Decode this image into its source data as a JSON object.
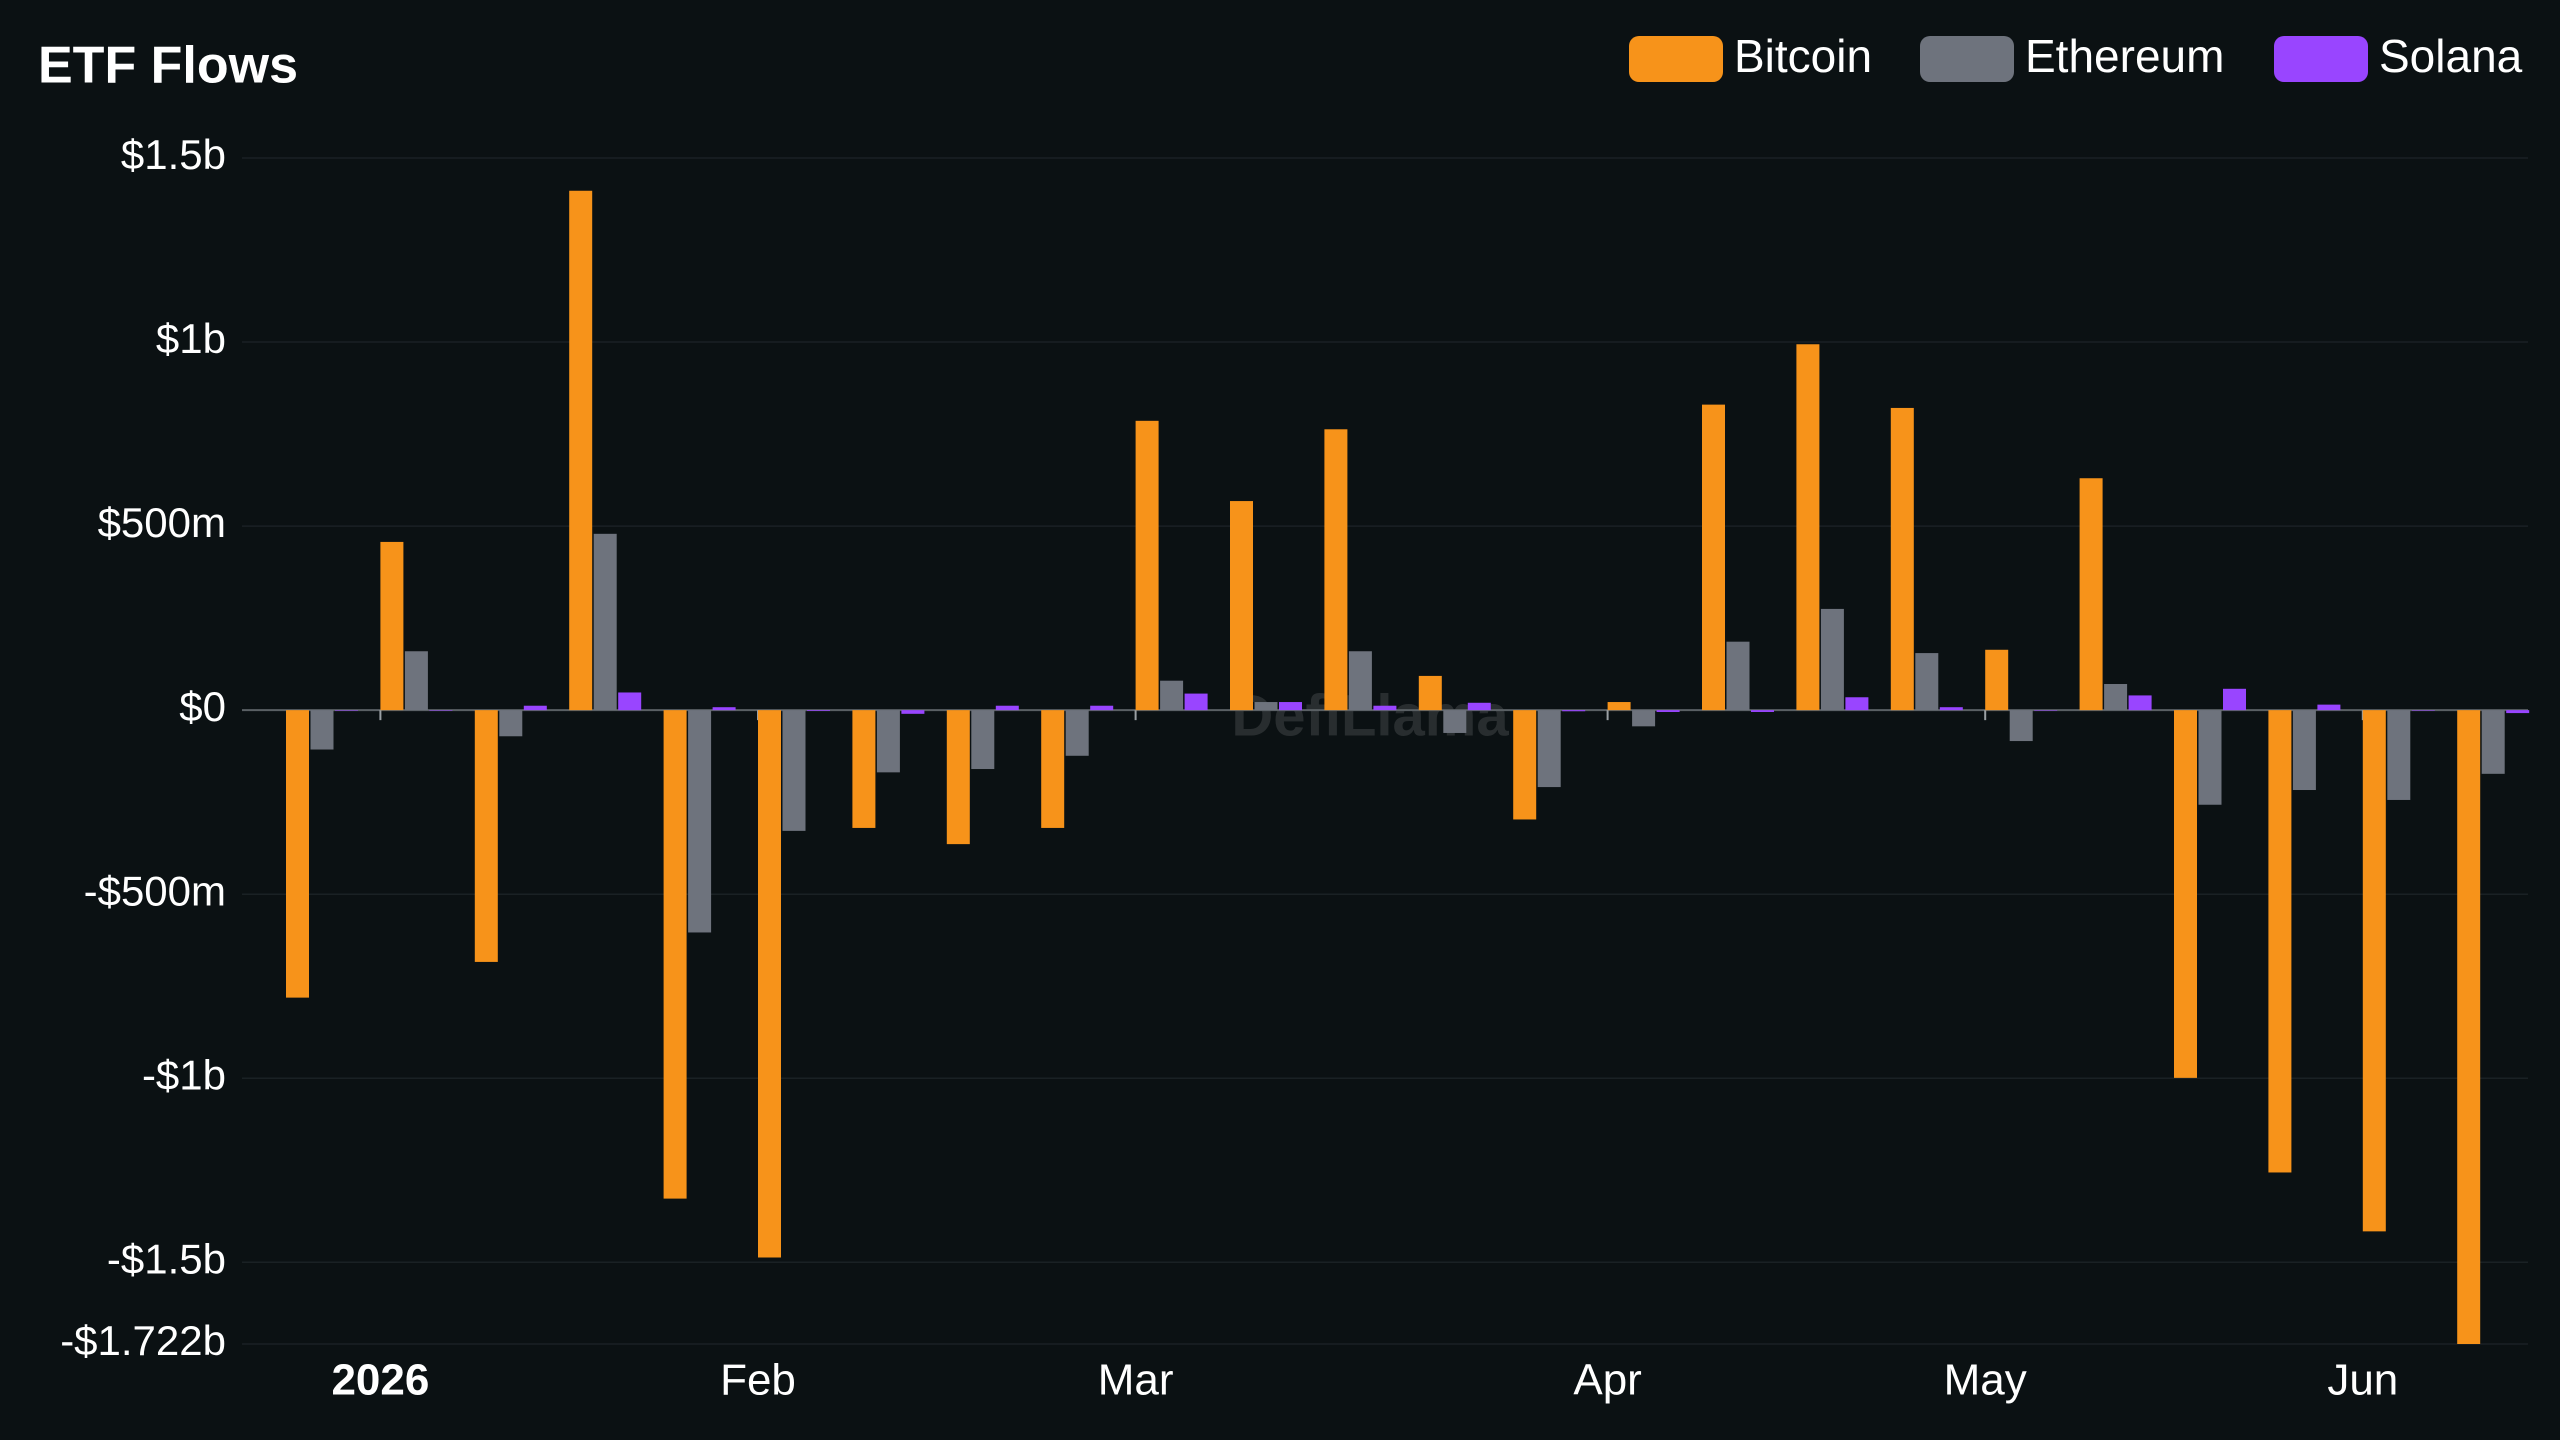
{
  "chart_data": {
    "type": "bar",
    "title": "ETF Flows",
    "watermark": "DefiLlama",
    "categories": [
      null,
      "2026",
      null,
      null,
      null,
      "Feb",
      null,
      null,
      null,
      "Mar",
      null,
      null,
      null,
      null,
      "Apr",
      null,
      null,
      null,
      "May",
      null,
      null,
      null,
      "Jun",
      null
    ],
    "series": [
      {
        "name": "Bitcoin",
        "color": "#f7931a",
        "values": [
          -781000000,
          457000000,
          -684000000,
          1411000000,
          -1327000000,
          -1487000000,
          -320000000,
          -364000000,
          -320000000,
          786000000,
          568000000,
          763000000,
          93000000,
          -297000000,
          22000000,
          830000000,
          994000000,
          821000000,
          164000000,
          630000000,
          -999000000,
          -1256000000,
          -1416000000,
          -1722000000
        ]
      },
      {
        "name": "Ethereum",
        "color": "#6e737d",
        "values": [
          -107000000,
          160000000,
          -71000000,
          479000000,
          -604000000,
          -328000000,
          -169000000,
          -160000000,
          -124000000,
          80000000,
          22000000,
          160000000,
          -62000000,
          -209000000,
          -44000000,
          186000000,
          275000000,
          155000000,
          -84000000,
          71000000,
          -257000000,
          -217000000,
          -244000000,
          -173000000
        ]
      },
      {
        "name": "Solana",
        "color": "#9945ff",
        "values": [
          0,
          0,
          12000000,
          48000000,
          8000000,
          -2000000,
          -10000000,
          12000000,
          12000000,
          45000000,
          22000000,
          12000000,
          20000000,
          -3000000,
          -5000000,
          -5000000,
          35000000,
          8000000,
          0,
          40000000,
          58000000,
          15000000,
          0,
          -8000000
        ]
      }
    ],
    "ylim": [
      -1722000000,
      1500000000
    ],
    "yticks": [
      {
        "value": 1500000000,
        "label": "$1.5b"
      },
      {
        "value": 1000000000,
        "label": "$1b"
      },
      {
        "value": 500000000,
        "label": "$500m"
      },
      {
        "value": 0,
        "label": "$0"
      },
      {
        "value": -500000000,
        "label": "-$500m"
      },
      {
        "value": -1000000000,
        "label": "-$1b"
      },
      {
        "value": -1500000000,
        "label": "-$1.5b"
      },
      {
        "value": -1722000000,
        "label": "-$1.722b"
      }
    ],
    "grid": true
  }
}
